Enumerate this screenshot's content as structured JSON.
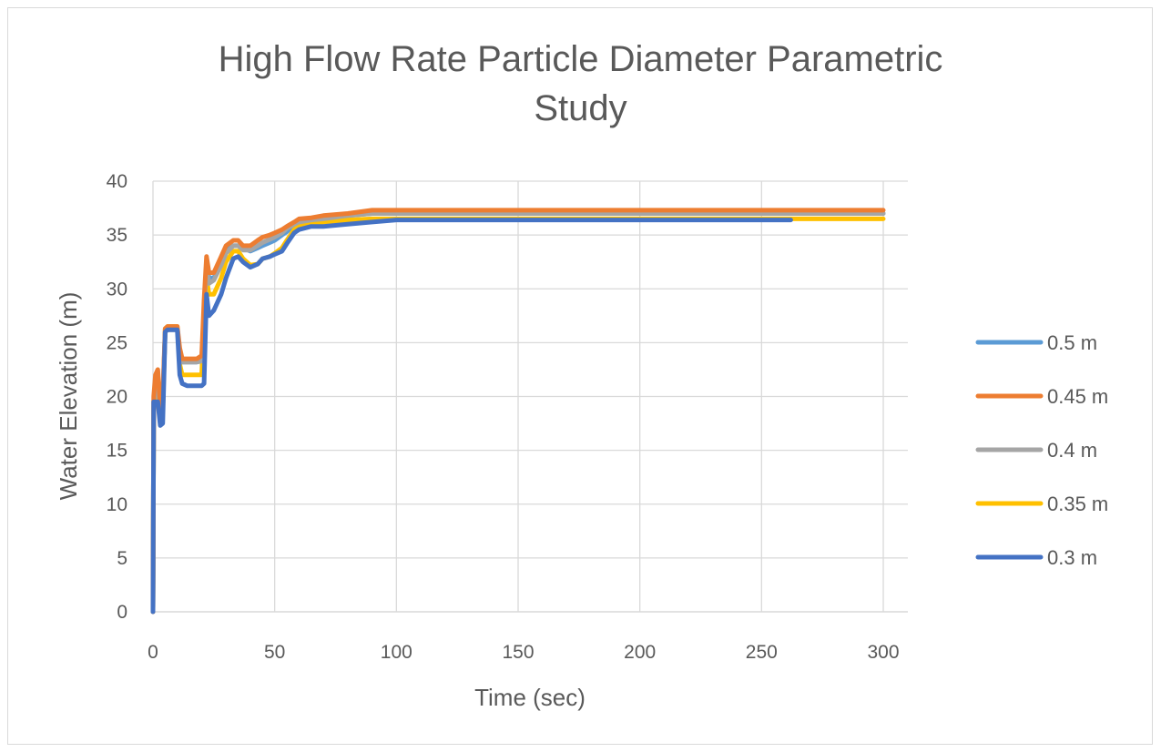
{
  "chart_data": {
    "type": "line",
    "title": "High Flow Rate Particle Diameter Parametric Study",
    "title_lines": [
      "High Flow Rate Particle Diameter Parametric",
      "Study"
    ],
    "xlabel": "Time (sec)",
    "ylabel": "Water Elevation  (m)",
    "xlim": [
      0,
      300
    ],
    "ylim": [
      0,
      40
    ],
    "xticks": [
      0,
      50,
      100,
      150,
      200,
      250,
      300
    ],
    "yticks": [
      0,
      5,
      10,
      15,
      20,
      25,
      30,
      35,
      40
    ],
    "grid": true,
    "legend_position": "right",
    "series": [
      {
        "name": "0.5 m",
        "color": "#5b9bd5",
        "x": [
          0,
          0.3,
          1,
          2,
          3,
          4,
          5,
          6,
          8,
          10,
          11,
          12,
          14,
          16,
          18,
          20,
          21,
          22,
          23,
          25,
          28,
          30,
          33,
          35,
          37,
          40,
          43,
          45,
          48,
          50,
          53,
          55,
          58,
          60,
          65,
          70,
          80,
          90,
          100,
          150,
          200,
          250,
          300
        ],
        "y": [
          0,
          19.5,
          21,
          22,
          18,
          19.5,
          26,
          26.3,
          26.3,
          26.3,
          24,
          23.2,
          23.2,
          23.2,
          23.2,
          23.3,
          28,
          32.5,
          31,
          31,
          32.5,
          33.5,
          34,
          34,
          33.8,
          33.5,
          33.8,
          34,
          34.3,
          34.5,
          35,
          35.3,
          36,
          36.2,
          36.3,
          36.5,
          36.8,
          37,
          37,
          37,
          37,
          37,
          37
        ]
      },
      {
        "name": "0.45 m",
        "color": "#ed7d31",
        "x": [
          0,
          0.3,
          1,
          2,
          3,
          4,
          5,
          6,
          8,
          10,
          11,
          12,
          14,
          16,
          18,
          20,
          21,
          22,
          23,
          25,
          28,
          30,
          33,
          35,
          37,
          40,
          43,
          45,
          48,
          50,
          53,
          55,
          58,
          60,
          65,
          70,
          80,
          90,
          100,
          150,
          200,
          250,
          300
        ],
        "y": [
          0,
          20,
          22,
          22.5,
          19,
          20,
          26.3,
          26.5,
          26.5,
          26.5,
          24.5,
          23.5,
          23.5,
          23.5,
          23.5,
          23.8,
          29,
          33,
          31.5,
          31.5,
          33,
          34,
          34.5,
          34.5,
          34,
          34,
          34.5,
          34.8,
          35,
          35.2,
          35.5,
          35.8,
          36.2,
          36.5,
          36.6,
          36.8,
          37,
          37.3,
          37.3,
          37.3,
          37.3,
          37.3,
          37.3
        ]
      },
      {
        "name": "0.4 m",
        "color": "#a5a5a5",
        "x": [
          0,
          0.3,
          1,
          2,
          3,
          4,
          5,
          6,
          8,
          10,
          11,
          12,
          14,
          16,
          18,
          20,
          21,
          22,
          23,
          25,
          28,
          30,
          33,
          35,
          37,
          40,
          43,
          45,
          48,
          50,
          53,
          55,
          58,
          60,
          65,
          70,
          80,
          90,
          100,
          150,
          200,
          250,
          300
        ],
        "y": [
          0,
          19.5,
          21,
          21.5,
          18,
          19.5,
          26,
          26.2,
          26.2,
          26.2,
          24,
          23.2,
          23.2,
          23.2,
          23.2,
          23.3,
          28,
          32,
          30.5,
          30.8,
          32.2,
          33.3,
          34,
          34,
          33.6,
          33.6,
          34,
          34.3,
          34.6,
          34.8,
          35.2,
          35.6,
          36,
          36.2,
          36.4,
          36.5,
          36.8,
          37,
          37,
          37,
          37,
          37,
          37
        ]
      },
      {
        "name": "0.35 m",
        "color": "#ffc000",
        "x": [
          0,
          0.3,
          1,
          2,
          3,
          4,
          5,
          6,
          8,
          10,
          11,
          12,
          14,
          16,
          18,
          20,
          21,
          22,
          23,
          25,
          28,
          30,
          33,
          35,
          37,
          40,
          43,
          45,
          48,
          50,
          53,
          55,
          58,
          60,
          65,
          70,
          80,
          90,
          100,
          150,
          200,
          250,
          300
        ],
        "y": [
          0,
          19,
          20.5,
          20.5,
          17.5,
          18.5,
          26.3,
          26.5,
          26.5,
          26.5,
          23,
          22,
          22,
          22,
          22,
          22,
          27,
          31,
          29.5,
          29.5,
          31,
          32.5,
          33.5,
          33.5,
          32.8,
          32.2,
          32.3,
          32.8,
          33,
          33.3,
          33.8,
          34.5,
          35.5,
          35.8,
          36,
          36.2,
          36.4,
          36.5,
          36.5,
          36.5,
          36.5,
          36.5,
          36.5
        ]
      },
      {
        "name": "0.3 m",
        "color": "#4472c4",
        "x": [
          0,
          0.3,
          1,
          2,
          3,
          4,
          5,
          6,
          8,
          10,
          11,
          12,
          14,
          16,
          18,
          20,
          21,
          22,
          23,
          25,
          28,
          30,
          33,
          35,
          37,
          40,
          43,
          45,
          48,
          50,
          53,
          55,
          58,
          60,
          65,
          70,
          80,
          90,
          100,
          150,
          200,
          262
        ],
        "y": [
          0,
          19.5,
          19.5,
          19.5,
          17.3,
          17.5,
          26,
          26.2,
          26.2,
          26.2,
          22,
          21.2,
          21,
          21,
          21,
          21,
          21.2,
          29.5,
          27.5,
          28,
          29.5,
          31,
          32.8,
          33,
          32.5,
          32,
          32.3,
          32.8,
          33,
          33.2,
          33.5,
          34.2,
          35.2,
          35.5,
          35.8,
          35.8,
          36,
          36.2,
          36.4,
          36.4,
          36.4,
          36.4
        ]
      }
    ]
  }
}
